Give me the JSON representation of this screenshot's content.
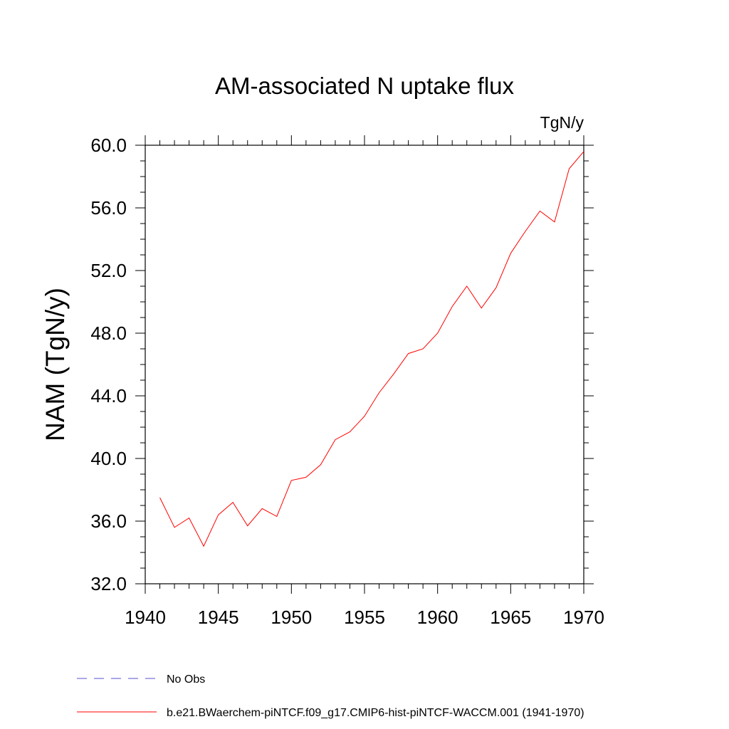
{
  "chart_data": {
    "type": "line",
    "title": "AM-associated N uptake flux",
    "units_label": "TgN/y",
    "ylabel": "NAM  (TgN/y)",
    "xlabel": "",
    "xlim": [
      1940,
      1970
    ],
    "ylim": [
      32.0,
      60.0
    ],
    "x_ticks": [
      1940,
      1945,
      1950,
      1955,
      1960,
      1965,
      1970
    ],
    "y_ticks": [
      "32.0",
      "36.0",
      "40.0",
      "44.0",
      "48.0",
      "52.0",
      "56.0",
      "60.0"
    ],
    "grid": false,
    "series": [
      {
        "name": "b.e21.BWaerchem-piNTCF.f09_g17.CMIP6-hist-piNTCF-WACCM.001 (1941-1970)",
        "color": "#ff0000",
        "style": "solid",
        "x": [
          1941,
          1942,
          1943,
          1944,
          1945,
          1946,
          1947,
          1948,
          1949,
          1950,
          1951,
          1952,
          1953,
          1954,
          1955,
          1956,
          1957,
          1958,
          1959,
          1960,
          1961,
          1962,
          1963,
          1964,
          1965,
          1966,
          1967,
          1968,
          1969,
          1970
        ],
        "y": [
          37.5,
          35.6,
          36.2,
          34.4,
          36.4,
          37.2,
          35.7,
          36.8,
          36.3,
          38.6,
          38.8,
          39.6,
          41.2,
          41.7,
          42.7,
          44.2,
          45.4,
          46.7,
          47.0,
          48.0,
          49.7,
          51.0,
          49.6,
          50.9,
          53.1,
          54.5,
          55.8,
          55.1,
          58.5,
          59.6
        ]
      }
    ],
    "legend": {
      "placement": "bottom-left",
      "entries": [
        {
          "label": "No Obs",
          "color": "#5a4fcf",
          "style": "dashed"
        },
        {
          "label": "b.e21.BWaerchem-piNTCF.f09_g17.CMIP6-hist-piNTCF-WACCM.001 (1941-1970)",
          "color": "#ff0000",
          "style": "solid"
        }
      ]
    }
  }
}
